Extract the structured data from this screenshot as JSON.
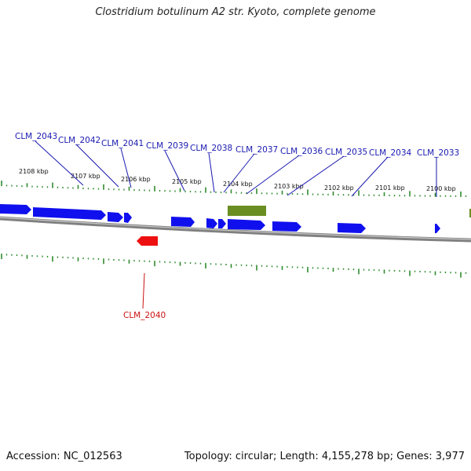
{
  "header": {
    "title": "Clostridium botulinum A2 str. Kyoto, complete genome"
  },
  "footer": {
    "accession": "Accession: NC_012563",
    "summary": "Topology: circular; Length: 4,155,278 bp; Genes: 3,977"
  },
  "colors": {
    "forward_gene": "#1010ee",
    "reverse_gene": "#ee1010",
    "feature": "#6b8e23",
    "tick": "#2e8b2e",
    "backbone": "#808080",
    "label_forward": "#1a1ab0",
    "label_reverse": "#cc1111"
  },
  "scale_ticks": [
    "2108 kbp",
    "2107 kbp",
    "2106 kbp",
    "2105 kbp",
    "2104 kbp",
    "2103 kbp",
    "2102 kbp",
    "2101 kbp",
    "2100 kbp"
  ],
  "gene_labels_top": [
    "CLM_2043",
    "CLM_2042",
    "CLM_2041",
    "CLM_2039",
    "CLM_2038",
    "CLM_2037",
    "CLM_2036",
    "CLM_2035",
    "CLM_2034",
    "CLM_2033"
  ],
  "gene_labels_bottom": [
    "CLM_2040"
  ],
  "icons": {
    "forward_gene": "arrow-right",
    "reverse_gene": "arrow-left"
  }
}
